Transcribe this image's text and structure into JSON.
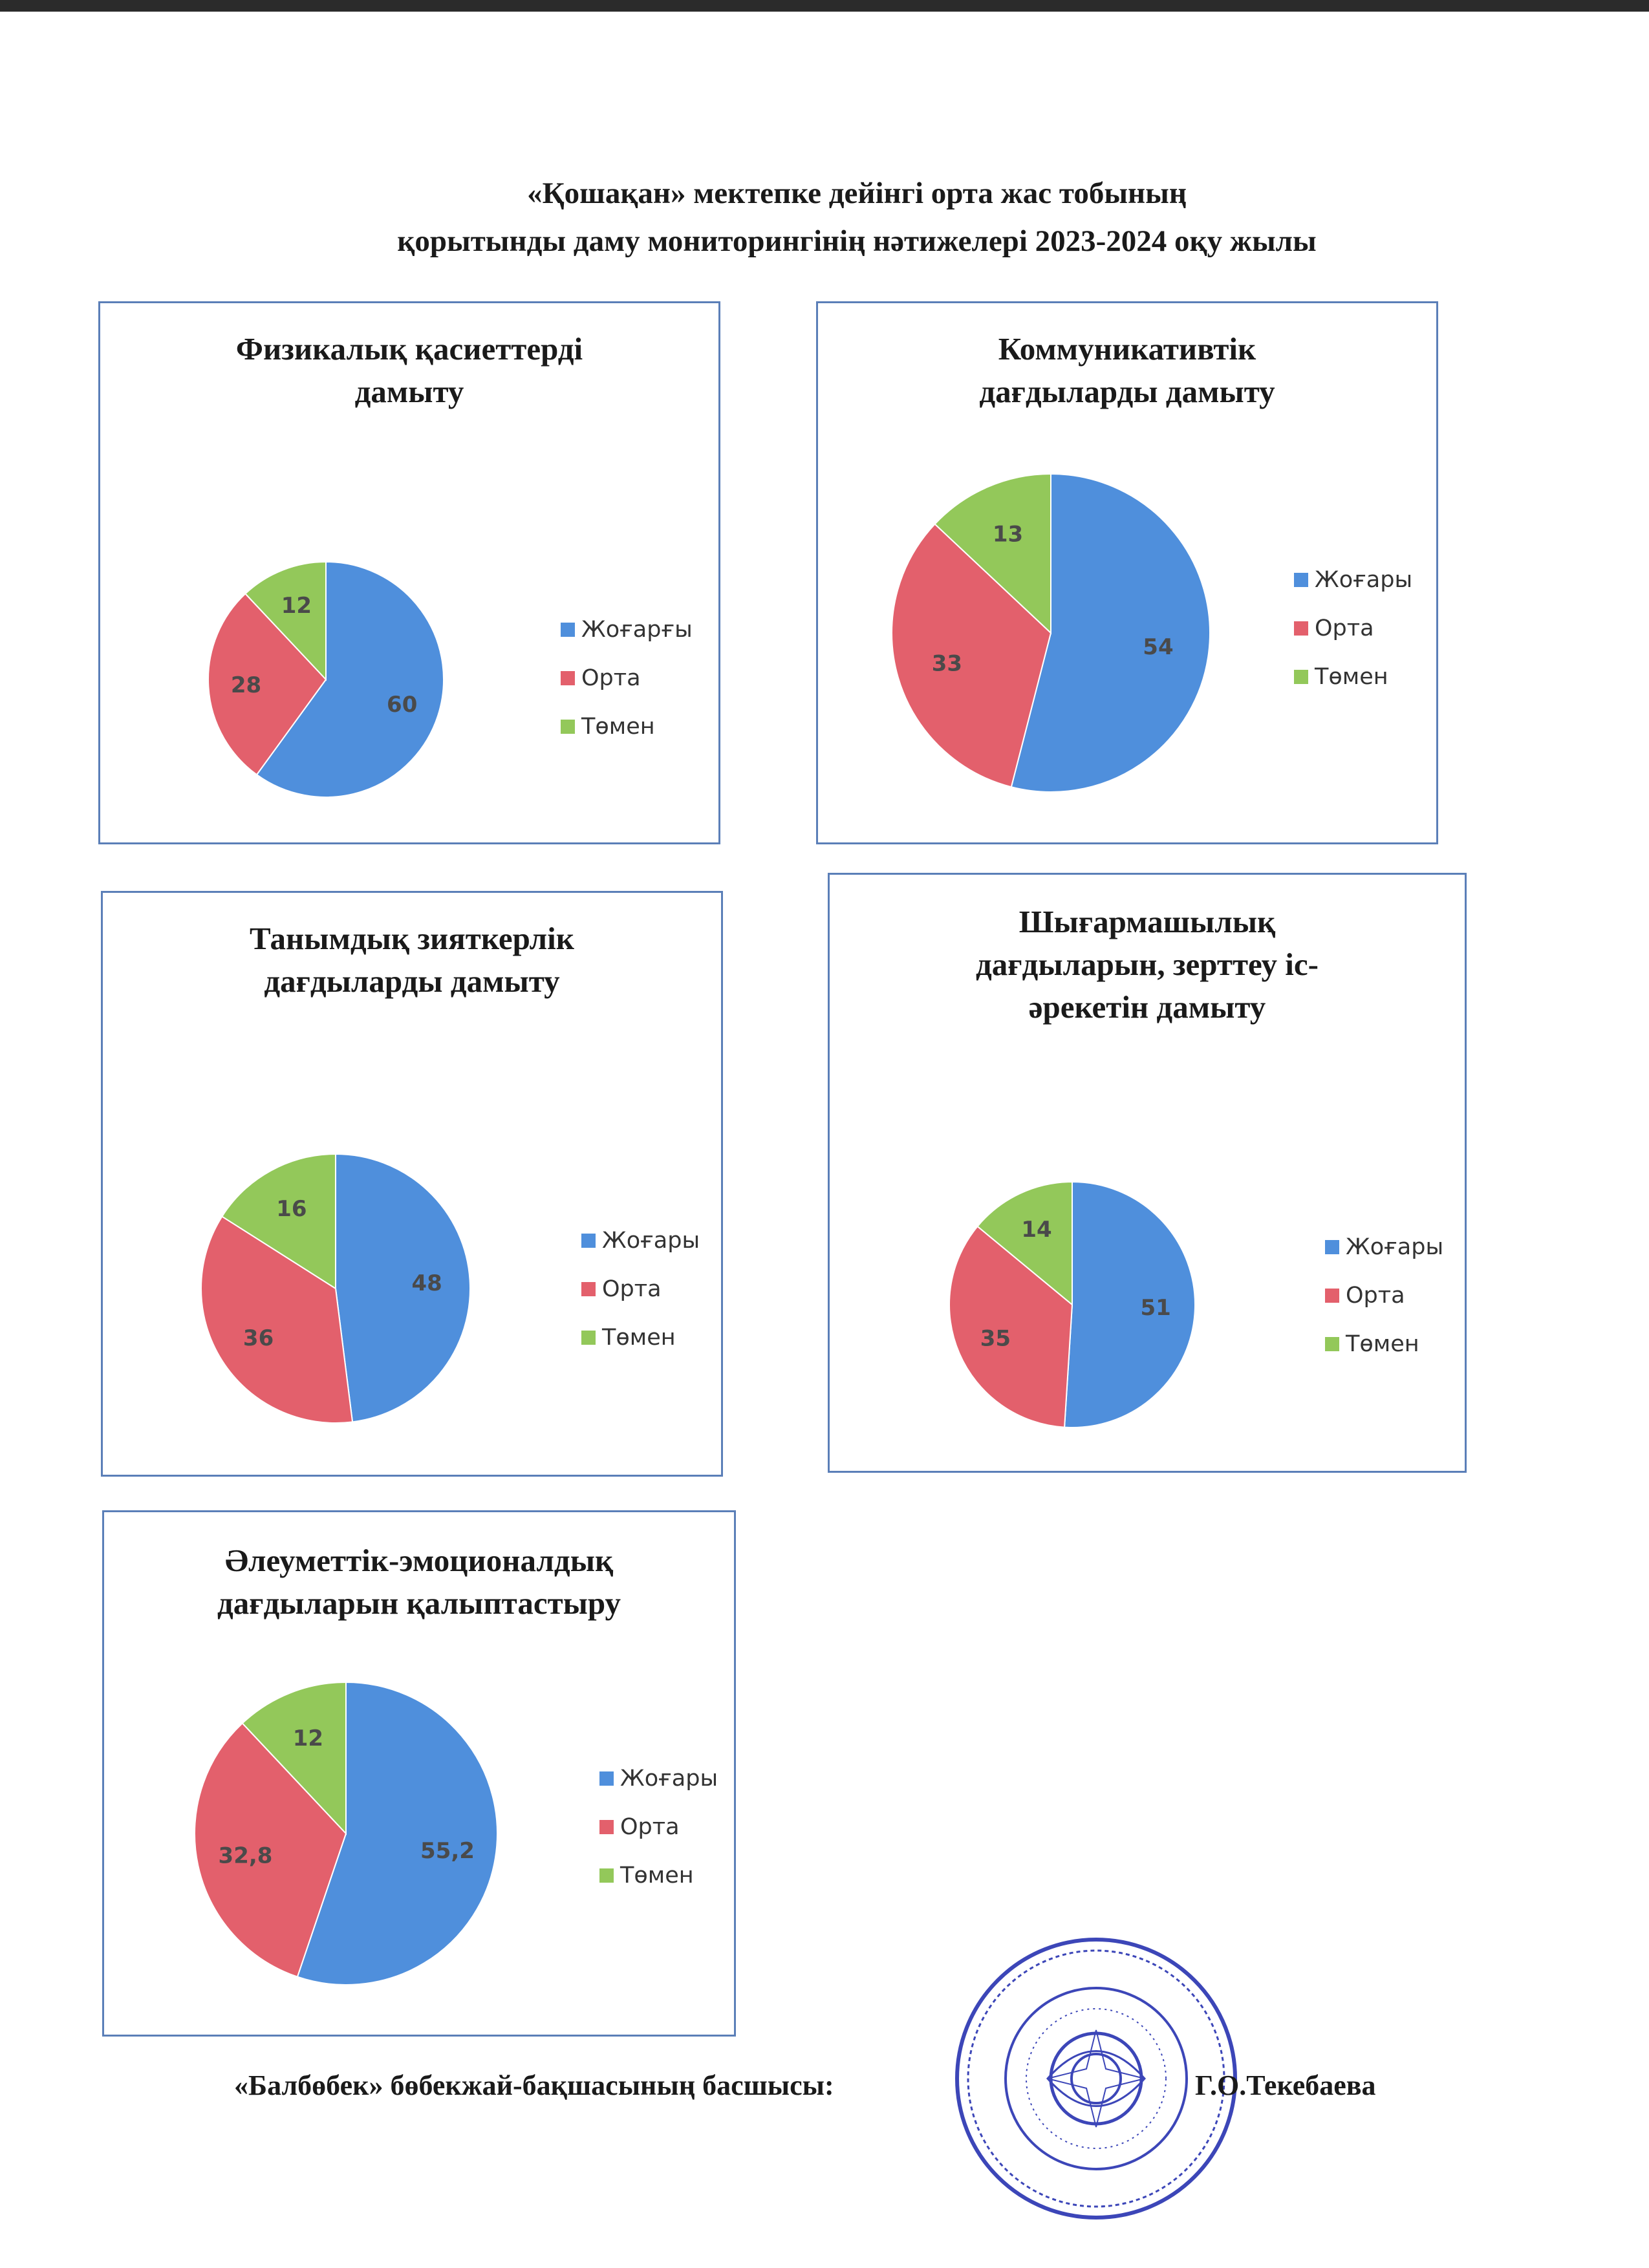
{
  "page": {
    "title_line1": "«Қошақан» мектепке дейінгі орта жас тобының",
    "title_line2": "қорытынды даму мониторингінің нәтижелері 2023-2024 оқу жылы"
  },
  "colors": {
    "high": "#4f8fdc",
    "mid": "#e3606c",
    "low": "#93c85a"
  },
  "chart_data": [
    {
      "type": "pie",
      "title_line1": "Физикалық қасиеттерді",
      "title_line2": "дамыту",
      "labels": [
        "Жоғарғы",
        "Орта",
        "Төмен"
      ],
      "values": [
        60,
        28,
        12
      ],
      "value_labels": [
        "60",
        "28",
        "12"
      ]
    },
    {
      "type": "pie",
      "title_line1": "Коммуникативтік",
      "title_line2": "дағдыларды дамыту",
      "labels": [
        "Жоғары",
        "Орта",
        "Төмен"
      ],
      "values": [
        54,
        33,
        13
      ],
      "value_labels": [
        "54",
        "33",
        "13"
      ]
    },
    {
      "type": "pie",
      "title_line1": "Танымдық зияткерлік",
      "title_line2": "дағдыларды дамыту",
      "labels": [
        "Жоғары",
        "Орта",
        "Төмен"
      ],
      "values": [
        48,
        36,
        16
      ],
      "value_labels": [
        "48",
        "36",
        "16"
      ]
    },
    {
      "type": "pie",
      "title_line1": "Шығармашылық",
      "title_line2": "дағдыларын, зерттеу іс-",
      "title_line3": "әрекетін дамыту",
      "labels": [
        "Жоғары",
        "Орта",
        "Төмен"
      ],
      "values": [
        51,
        35,
        14
      ],
      "value_labels": [
        "51",
        "35",
        "14"
      ]
    },
    {
      "type": "pie",
      "title_line1": "Әлеуметтік-эмоционалдық",
      "title_line2": "дағдыларын қалыптастыру",
      "labels": [
        "Жоғары",
        "Орта",
        "Төмен"
      ],
      "values": [
        55.2,
        32.8,
        12
      ],
      "value_labels": [
        "55,2",
        "32,8",
        "12"
      ]
    }
  ],
  "footer": {
    "position_label": "«Балбөбек» бөбекжай-бақшасының басшысы:",
    "name": "Г.О.Текебаева"
  }
}
